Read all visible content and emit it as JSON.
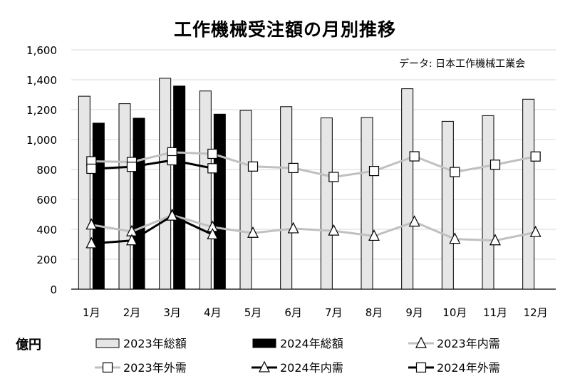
{
  "chart_data": {
    "type": "bar",
    "title": "工作機械受注額の月別推移",
    "source": "データ: 日本工作機械工業会",
    "unit": "億円",
    "categories": [
      "1月",
      "2月",
      "3月",
      "4月",
      "5月",
      "6月",
      "7月",
      "8月",
      "9月",
      "10月",
      "11月",
      "12月"
    ],
    "y_ticks": [
      "0",
      "200",
      "400",
      "600",
      "800",
      "1,000",
      "1,200",
      "1,400",
      "1,600"
    ],
    "ylim": [
      0,
      1600
    ],
    "grid": true,
    "legend_position": "bottom",
    "bar_series": [
      {
        "name": "2023年総額",
        "color": "#e6e6e6",
        "values": [
          1290,
          1240,
          1410,
          1325,
          1195,
          1220,
          1145,
          1148,
          1340,
          1122,
          1160,
          1270
        ]
      },
      {
        "name": "2024年総額",
        "color": "#000000",
        "values": [
          1110,
          1143,
          1358,
          1170,
          null,
          null,
          null,
          null,
          null,
          null,
          null,
          null
        ]
      }
    ],
    "line_series": [
      {
        "name": "2023年内需",
        "color": "#c0c0c0",
        "marker": "triangle",
        "values": [
          430,
          385,
          495,
          415,
          375,
          405,
          390,
          355,
          450,
          335,
          325,
          380
        ]
      },
      {
        "name": "2023年外需",
        "color": "#c0c0c0",
        "marker": "square",
        "values": [
          855,
          850,
          915,
          905,
          820,
          810,
          750,
          790,
          888,
          783,
          832,
          887
        ]
      },
      {
        "name": "2024年内需",
        "color": "#000000",
        "marker": "triangle",
        "values": [
          305,
          325,
          490,
          365,
          null,
          null,
          null,
          null,
          null,
          null,
          null,
          null
        ]
      },
      {
        "name": "2024年外需",
        "color": "#000000",
        "marker": "square",
        "values": [
          805,
          818,
          862,
          808,
          null,
          null,
          null,
          null,
          null,
          null,
          null,
          null
        ]
      }
    ],
    "legend_order": [
      "2023年総額",
      "2024年総額",
      "2023年内需",
      "2023年外需",
      "2024年内需",
      "2024年外需"
    ]
  }
}
